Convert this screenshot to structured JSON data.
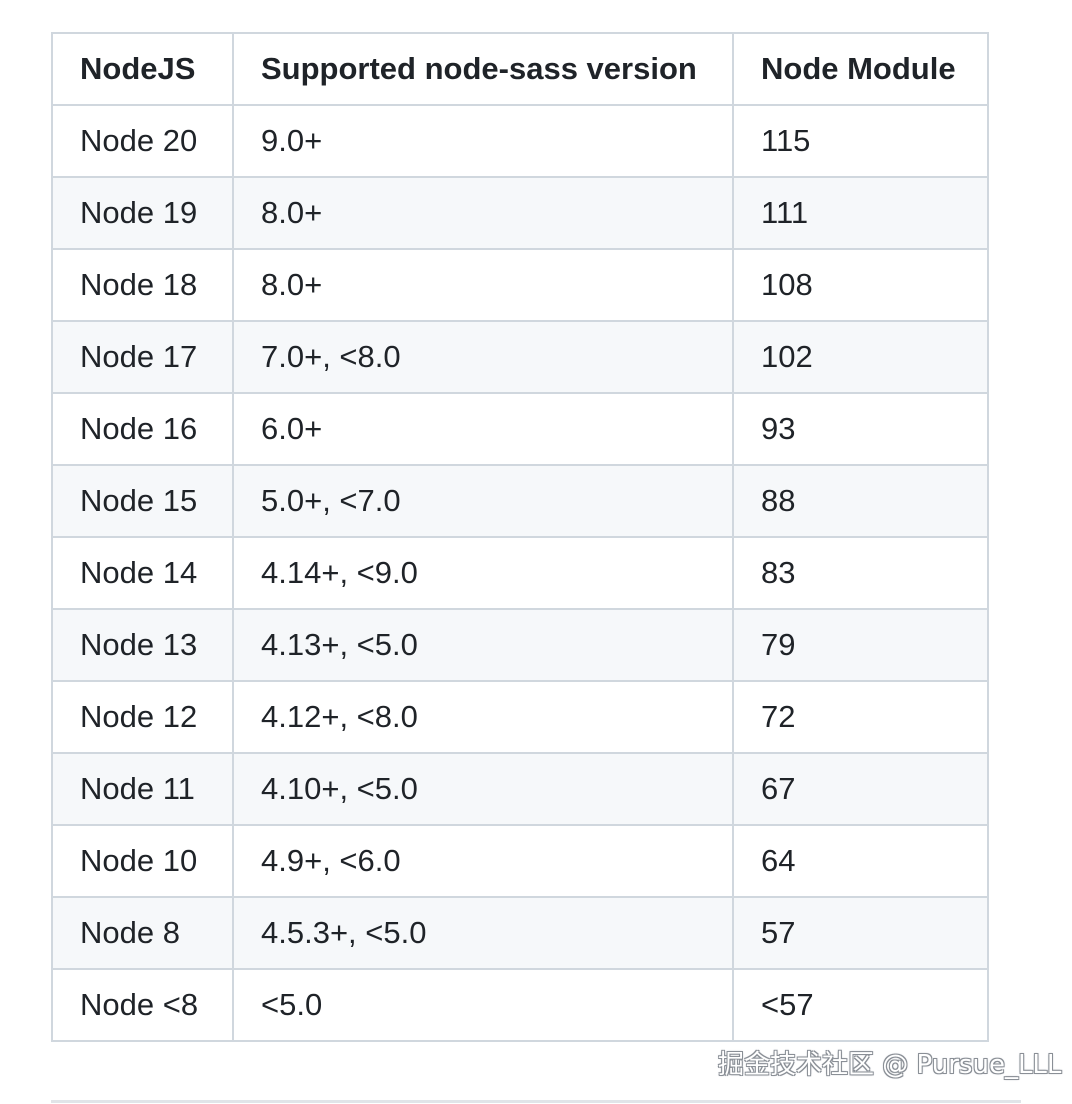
{
  "table": {
    "headers": [
      "NodeJS",
      "Supported node-sass version",
      "Node Module"
    ],
    "rows": [
      [
        "Node 20",
        "9.0+",
        "115"
      ],
      [
        "Node 19",
        "8.0+",
        "111"
      ],
      [
        "Node 18",
        "8.0+",
        "108"
      ],
      [
        "Node 17",
        "7.0+, <8.0",
        "102"
      ],
      [
        "Node 16",
        "6.0+",
        "93"
      ],
      [
        "Node 15",
        "5.0+, <7.0",
        "88"
      ],
      [
        "Node 14",
        "4.14+, <9.0",
        "83"
      ],
      [
        "Node 13",
        "4.13+, <5.0",
        "79"
      ],
      [
        "Node 12",
        "4.12+, <8.0",
        "72"
      ],
      [
        "Node 11",
        "4.10+, <5.0",
        "67"
      ],
      [
        "Node 10",
        "4.9+, <6.0",
        "64"
      ],
      [
        "Node 8",
        "4.5.3+, <5.0",
        "57"
      ],
      [
        "Node <8",
        "<5.0",
        "<57"
      ]
    ]
  },
  "watermark": "掘金技术社区 @ Pursue_LLL",
  "colors": {
    "border": "#d0d7de",
    "stripe": "#f6f8fa",
    "text": "#1f2328"
  }
}
